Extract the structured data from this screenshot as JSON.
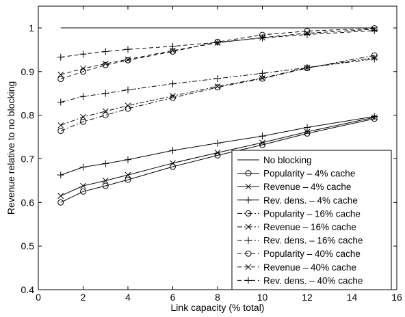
{
  "chart_data": {
    "type": "line",
    "title": "",
    "xlabel": "Link capacity (% total)",
    "ylabel": "Revenue relative to no blocking",
    "xlim": [
      0,
      16
    ],
    "ylim": [
      0.4,
      1.05
    ],
    "xticks": [
      0,
      2,
      4,
      6,
      8,
      10,
      12,
      14,
      16
    ],
    "yticks": [
      0.4,
      0.5,
      0.6,
      0.7,
      0.8,
      0.9,
      1
    ],
    "xtick_labels": [
      "0",
      "2",
      "4",
      "6",
      "8",
      "10",
      "12",
      "14",
      "16"
    ],
    "ytick_labels": [
      "0.4",
      "0.5",
      "0.6",
      "0.7",
      "0.8",
      "0.9",
      "1"
    ],
    "grid": false,
    "legend_position": "bottom-right",
    "series": [
      {
        "name": "No blocking",
        "style": "solid",
        "marker": "none",
        "x": [
          1,
          15
        ],
        "y": [
          1,
          1
        ]
      },
      {
        "name": "Popularity – 4% cache",
        "style": "solid",
        "marker": "circle",
        "x": [
          1,
          2,
          3,
          4,
          6,
          8,
          10,
          12,
          15
        ],
        "y": [
          0.6,
          0.625,
          0.638,
          0.652,
          0.682,
          0.708,
          0.732,
          0.758,
          0.792
        ]
      },
      {
        "name": "Revenue – 4% cache",
        "style": "solid",
        "marker": "x",
        "x": [
          1,
          2,
          3,
          4,
          6,
          8,
          10,
          12,
          15
        ],
        "y": [
          0.615,
          0.638,
          0.65,
          0.663,
          0.69,
          0.714,
          0.737,
          0.762,
          0.795
        ]
      },
      {
        "name": "Rev. dens. – 4% cache",
        "style": "solid",
        "marker": "plus",
        "x": [
          1,
          2,
          3,
          4,
          6,
          8,
          10,
          12,
          15
        ],
        "y": [
          0.663,
          0.681,
          0.689,
          0.698,
          0.719,
          0.736,
          0.752,
          0.772,
          0.797
        ]
      },
      {
        "name": "Popularity – 16% cache",
        "style": "dashdot",
        "marker": "circle",
        "x": [
          1,
          2,
          3,
          4,
          6,
          8,
          10,
          12,
          15
        ],
        "y": [
          0.764,
          0.785,
          0.8,
          0.815,
          0.84,
          0.864,
          0.884,
          0.908,
          0.937
        ]
      },
      {
        "name": "Revenue – 16% cache",
        "style": "dashdot",
        "marker": "x",
        "x": [
          1,
          2,
          3,
          4,
          6,
          8,
          10,
          12,
          15
        ],
        "y": [
          0.777,
          0.796,
          0.809,
          0.822,
          0.844,
          0.866,
          0.885,
          0.909,
          0.932
        ]
      },
      {
        "name": "Rev. dens. – 16% cache",
        "style": "dashdot",
        "marker": "plus",
        "x": [
          1,
          2,
          3,
          4,
          6,
          8,
          10,
          12,
          15
        ],
        "y": [
          0.83,
          0.843,
          0.85,
          0.858,
          0.872,
          0.884,
          0.896,
          0.909,
          0.929
        ]
      },
      {
        "name": "Popularity – 40% cache",
        "style": "dashed",
        "marker": "circle",
        "x": [
          1,
          2,
          3,
          4,
          6,
          8,
          10,
          12,
          15
        ],
        "y": [
          0.883,
          0.9,
          0.915,
          0.926,
          0.946,
          0.968,
          0.984,
          0.993,
          0.999
        ]
      },
      {
        "name": "Revenue – 40% cache",
        "style": "dashed",
        "marker": "x",
        "x": [
          1,
          2,
          3,
          4,
          6,
          8,
          10,
          12,
          15
        ],
        "y": [
          0.893,
          0.907,
          0.918,
          0.928,
          0.948,
          0.966,
          0.978,
          0.988,
          0.997
        ]
      },
      {
        "name": "Rev. dens. – 40% cache",
        "style": "dashed",
        "marker": "plus",
        "x": [
          1,
          2,
          3,
          4,
          6,
          8,
          10,
          12,
          15
        ],
        "y": [
          0.933,
          0.94,
          0.946,
          0.951,
          0.958,
          0.967,
          0.977,
          0.985,
          0.994
        ]
      }
    ]
  }
}
